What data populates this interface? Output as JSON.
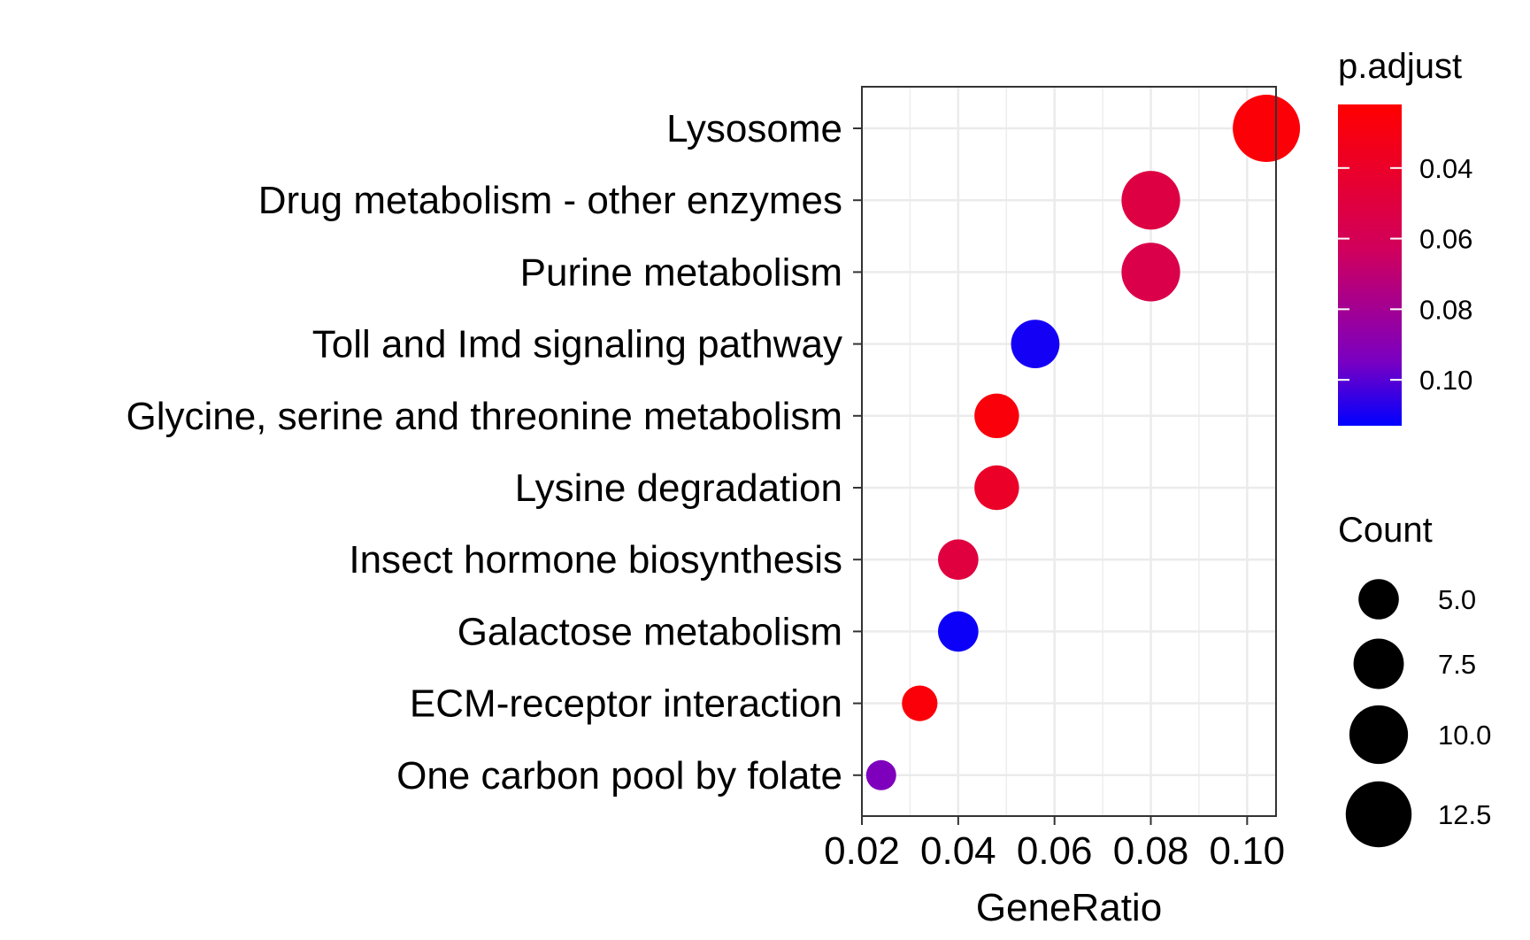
{
  "chart_data": {
    "type": "scatter",
    "xlabel": "GeneRatio",
    "ylabel": "",
    "xlim": [
      0.02,
      0.106
    ],
    "x_ticks": [
      0.02,
      0.04,
      0.06,
      0.08,
      0.1
    ],
    "x_tick_labels": [
      "0.02",
      "0.04",
      "0.06",
      "0.08",
      "0.10"
    ],
    "grid": true,
    "legend_placement": "right",
    "categories": [
      "Lysosome",
      "Drug metabolism - other enzymes",
      "Purine metabolism",
      "Toll and Imd signaling pathway",
      "Glycine, serine and threonine metabolism",
      "Lysine degradation",
      "Insect hormone biosynthesis",
      "Galactose metabolism",
      "ECM-receptor interaction",
      "One carbon pool by folate"
    ],
    "points": [
      {
        "category": "Lysosome",
        "gene_ratio": 0.104,
        "count": 13,
        "p_adjust": 0.025
      },
      {
        "category": "Drug metabolism - other enzymes",
        "gene_ratio": 0.08,
        "count": 10,
        "p_adjust": 0.052
      },
      {
        "category": "Purine metabolism",
        "gene_ratio": 0.08,
        "count": 10,
        "p_adjust": 0.055
      },
      {
        "category": "Toll and Imd signaling pathway",
        "gene_ratio": 0.056,
        "count": 7,
        "p_adjust": 0.11
      },
      {
        "category": "Glycine, serine and threonine metabolism",
        "gene_ratio": 0.048,
        "count": 6,
        "p_adjust": 0.027
      },
      {
        "category": "Lysine degradation",
        "gene_ratio": 0.048,
        "count": 6,
        "p_adjust": 0.04
      },
      {
        "category": "Insect hormone biosynthesis",
        "gene_ratio": 0.04,
        "count": 5,
        "p_adjust": 0.05
      },
      {
        "category": "Galactose metabolism",
        "gene_ratio": 0.04,
        "count": 5,
        "p_adjust": 0.111
      },
      {
        "category": "ECM-receptor interaction",
        "gene_ratio": 0.032,
        "count": 4,
        "p_adjust": 0.026
      },
      {
        "category": "One carbon pool by folate",
        "gene_ratio": 0.024,
        "count": 3,
        "p_adjust": 0.093
      }
    ],
    "color_legend": {
      "title": "p.adjust",
      "range": [
        0.022,
        0.113
      ],
      "ticks": [
        0.04,
        0.06,
        0.08,
        0.1
      ],
      "tick_labels": [
        "0.04",
        "0.06",
        "0.08",
        "0.10"
      ],
      "low_color": "#FF0000",
      "high_color": "#0000FF"
    },
    "size_legend": {
      "title": "Count",
      "values": [
        5.0,
        7.5,
        10.0,
        12.5
      ],
      "labels": [
        "5.0",
        "7.5",
        "10.0",
        "12.5"
      ],
      "range": [
        3,
        13
      ]
    }
  }
}
